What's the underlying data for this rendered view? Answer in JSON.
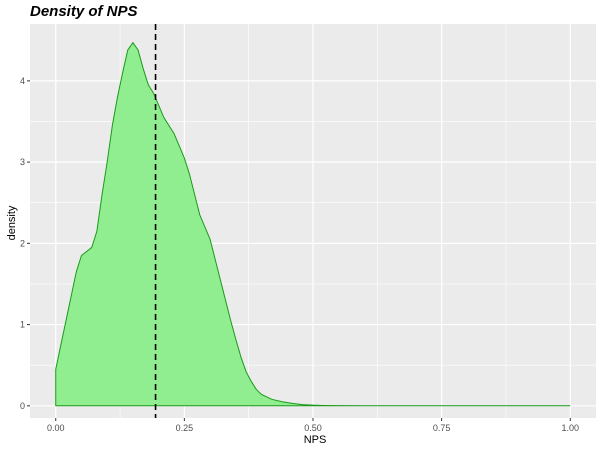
{
  "chart_data": {
    "type": "area",
    "title": "Density of NPS",
    "xlabel": "NPS",
    "ylabel": "density",
    "xlim": [
      -0.05,
      1.05
    ],
    "ylim": [
      -0.15,
      4.7
    ],
    "x_ticks": [
      0.0,
      0.25,
      0.5,
      0.75,
      1.0
    ],
    "x_tick_labels": [
      "0.00",
      "0.25",
      "0.50",
      "0.75",
      "1.00"
    ],
    "y_ticks": [
      0,
      1,
      2,
      3,
      4
    ],
    "y_tick_labels": [
      "0",
      "1",
      "2",
      "3",
      "4"
    ],
    "grid": true,
    "panel_background": "#ebebeb",
    "fill_color": "#90ee90",
    "line_color": "#1a9a1a",
    "vline_color": "#000000",
    "vline_x": 0.194,
    "x": [
      0.0,
      0.0,
      0.01,
      0.02,
      0.03,
      0.04,
      0.05,
      0.06,
      0.07,
      0.08,
      0.09,
      0.1,
      0.11,
      0.12,
      0.13,
      0.14,
      0.15,
      0.16,
      0.17,
      0.18,
      0.185,
      0.19,
      0.2,
      0.21,
      0.22,
      0.23,
      0.24,
      0.25,
      0.26,
      0.27,
      0.28,
      0.29,
      0.3,
      0.31,
      0.32,
      0.33,
      0.34,
      0.35,
      0.36,
      0.37,
      0.38,
      0.39,
      0.4,
      0.42,
      0.44,
      0.46,
      0.48,
      0.5,
      0.52,
      0.55,
      0.6,
      0.7,
      0.8,
      0.9,
      1.0
    ],
    "y": [
      0.0,
      0.45,
      0.75,
      1.05,
      1.35,
      1.65,
      1.85,
      1.9,
      1.95,
      2.15,
      2.6,
      3.0,
      3.45,
      3.8,
      4.1,
      4.38,
      4.47,
      4.38,
      4.15,
      3.95,
      3.9,
      3.85,
      3.7,
      3.55,
      3.45,
      3.35,
      3.2,
      3.05,
      2.85,
      2.6,
      2.35,
      2.2,
      2.05,
      1.8,
      1.55,
      1.3,
      1.05,
      0.82,
      0.6,
      0.42,
      0.3,
      0.2,
      0.14,
      0.08,
      0.05,
      0.03,
      0.015,
      0.008,
      0.004,
      0.002,
      0.001,
      0.0,
      0.0,
      0.0,
      0.0
    ]
  }
}
